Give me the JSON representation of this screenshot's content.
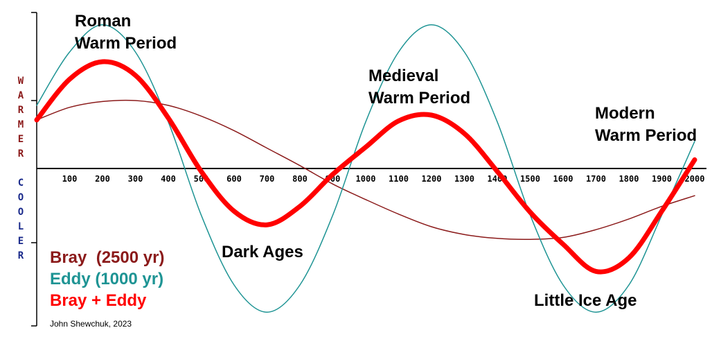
{
  "chart_data": {
    "type": "line",
    "x_ticks": [
      100,
      200,
      300,
      400,
      500,
      600,
      700,
      800,
      900,
      1000,
      1100,
      1200,
      1300,
      1400,
      1500,
      1600,
      1700,
      1800,
      1900,
      2000
    ],
    "xlim": [
      0,
      2000
    ],
    "ylim": [
      -1.5,
      1.5
    ],
    "y_axis_top_label": "WARMER",
    "y_axis_bottom_label": "COOLER",
    "series": [
      {
        "name": "Bray  (2500 yr)",
        "color": "#8b1a1a",
        "x": [
          0,
          100,
          200,
          300,
          400,
          500,
          600,
          700,
          800,
          900,
          1000,
          1100,
          1200,
          1300,
          1400,
          1500,
          1600,
          1700,
          1800,
          1900,
          2000
        ],
        "values": [
          0.5,
          0.63,
          0.69,
          0.7,
          0.65,
          0.54,
          0.39,
          0.21,
          0.03,
          -0.16,
          -0.32,
          -0.47,
          -0.6,
          -0.68,
          -0.72,
          -0.73,
          -0.71,
          -0.63,
          -0.52,
          -0.39,
          -0.28
        ]
      },
      {
        "name": "Eddy (1000 yr)",
        "color": "#1e9494",
        "x": [
          0,
          100,
          200,
          300,
          400,
          500,
          600,
          700,
          800,
          900,
          1000,
          1100,
          1200,
          1300,
          1400,
          1500,
          1600,
          1700,
          1800,
          1900,
          2000
        ],
        "values": [
          0.65,
          1.2,
          1.48,
          1.2,
          0.48,
          -0.48,
          -1.2,
          -1.48,
          -1.2,
          -0.48,
          0.48,
          1.2,
          1.48,
          1.2,
          0.48,
          -0.48,
          -1.2,
          -1.48,
          -1.2,
          -0.48,
          0.28
        ]
      },
      {
        "name": "Bray + Eddy",
        "color": "#ff0000",
        "x": [
          0,
          100,
          200,
          300,
          400,
          500,
          600,
          700,
          800,
          900,
          1000,
          1100,
          1200,
          1300,
          1400,
          1500,
          1600,
          1700,
          1800,
          1900,
          2000
        ],
        "values": [
          0.5,
          0.92,
          1.1,
          0.96,
          0.52,
          -0.03,
          -0.44,
          -0.58,
          -0.39,
          -0.06,
          0.22,
          0.49,
          0.55,
          0.36,
          -0.03,
          -0.45,
          -0.78,
          -1.06,
          -0.92,
          -0.44,
          0.09
        ]
      }
    ],
    "annotations": [
      {
        "lines": [
          "Roman",
          "Warm Period"
        ]
      },
      {
        "lines": [
          "Medieval",
          "Warm Period"
        ]
      },
      {
        "lines": [
          "Modern",
          "Warm Period"
        ]
      },
      {
        "lines": [
          "Dark Ages"
        ]
      },
      {
        "lines": [
          "Little Ice Age"
        ]
      }
    ],
    "credit": "John Shewchuk, 2023",
    "grid": false,
    "legend_placement": "bottom-left"
  }
}
